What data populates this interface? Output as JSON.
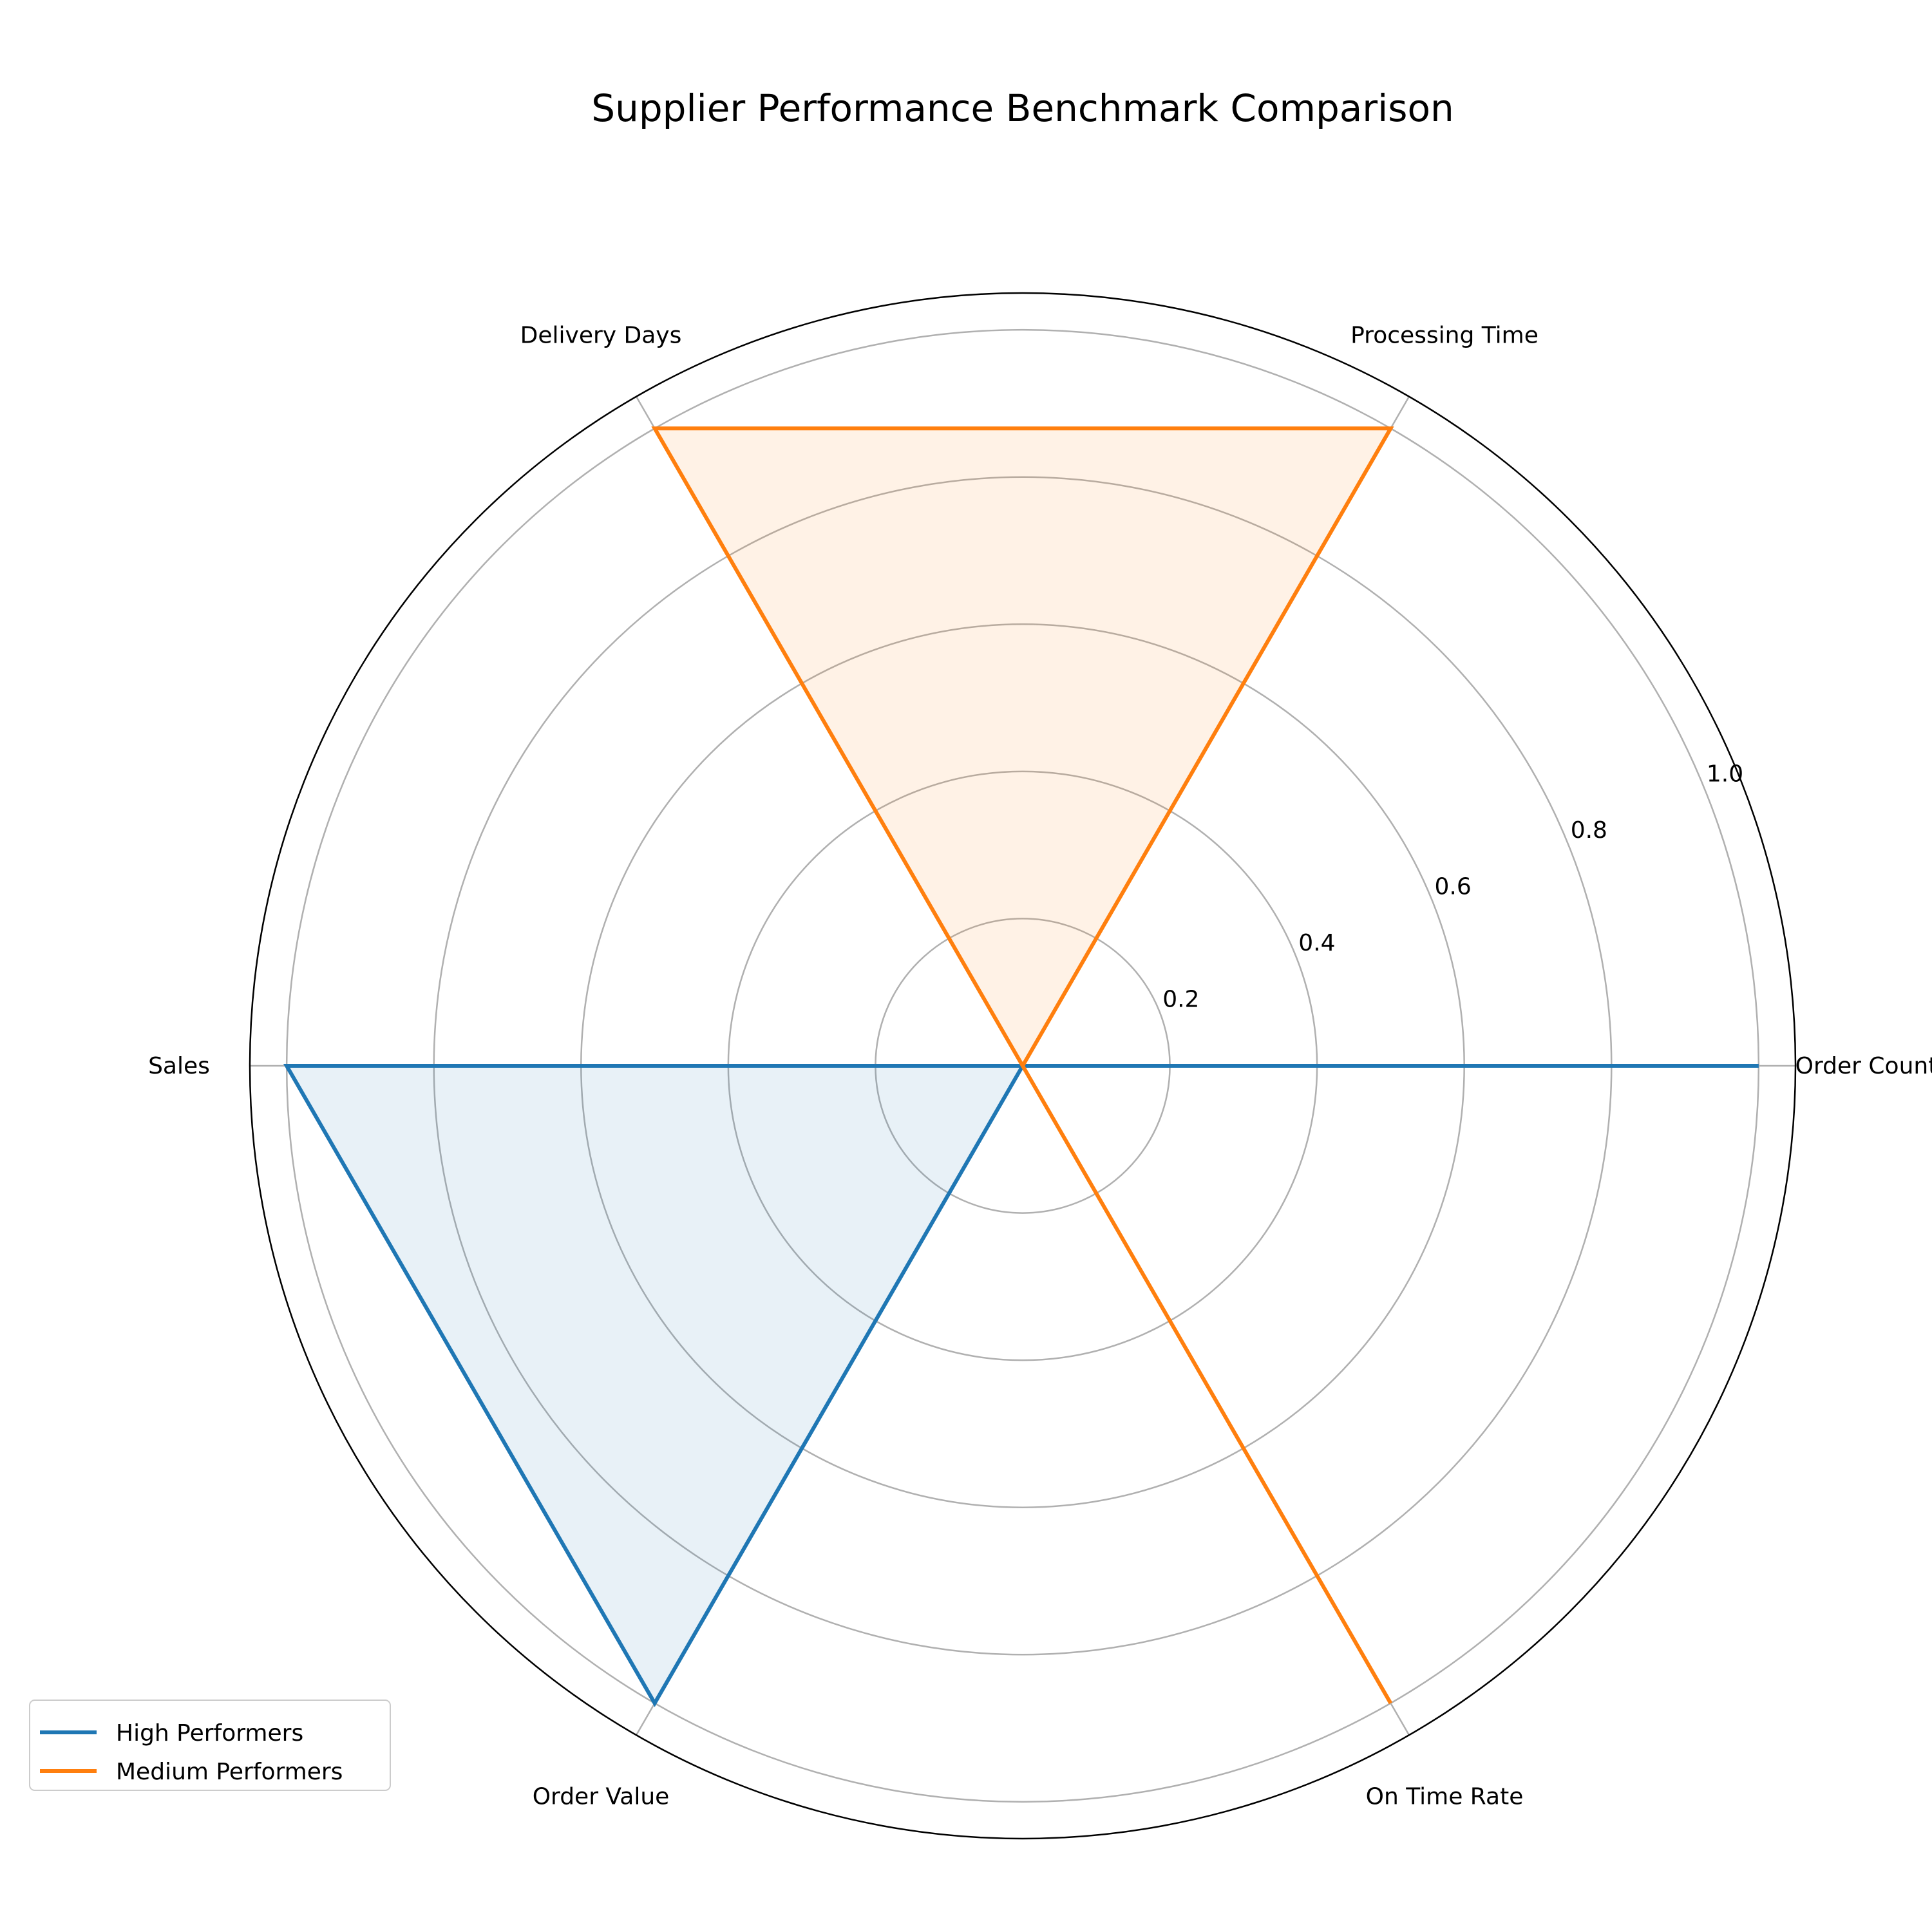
{
  "chart_data": {
    "type": "radar",
    "title": "Supplier Performance Benchmark Comparison",
    "categories": [
      "Order Count",
      "Processing Time",
      "Delivery Days",
      "Sales",
      "Order Value",
      "On Time Rate"
    ],
    "rlim": [
      0,
      1.05
    ],
    "rticks": [
      0.2,
      0.4,
      0.6,
      0.8,
      1.0
    ],
    "rtick_labels": [
      "0.2",
      "0.4",
      "0.6",
      "0.8",
      "1.0"
    ],
    "grid": true,
    "legend_position": "bottom-left",
    "series": [
      {
        "name": "High Performers",
        "color": "#1f77b4",
        "values": [
          1.0,
          0.0,
          0.0,
          1.0,
          1.0,
          0.0
        ]
      },
      {
        "name": "Medium Performers",
        "color": "#ff7f0e",
        "values": [
          0.0,
          1.0,
          1.0,
          0.0,
          0.0,
          1.0
        ]
      }
    ]
  }
}
